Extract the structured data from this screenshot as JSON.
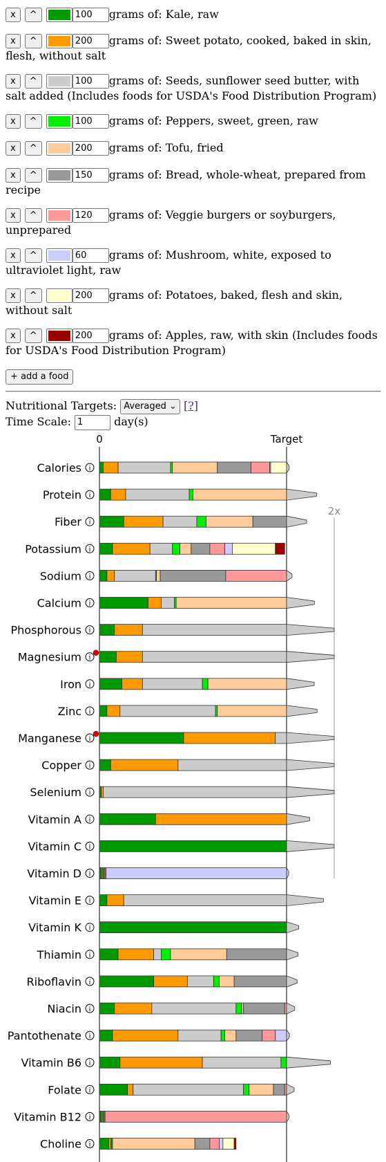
{
  "remove_label": "x",
  "up_label": "^",
  "grams_of": "grams of:",
  "foods": [
    {
      "amount": "100",
      "name": "Kale, raw",
      "color": "#009900"
    },
    {
      "amount": "200",
      "name": "Sweet potato, cooked, baked in skin, flesh, without salt",
      "color": "#ff9900"
    },
    {
      "amount": "100",
      "name": "Seeds, sunflower seed butter, with salt added (Includes foods for USDA's Food Distribution Program)",
      "color": "#cccccc"
    },
    {
      "amount": "100",
      "name": "Peppers, sweet, green, raw",
      "color": "#00ee00"
    },
    {
      "amount": "200",
      "name": "Tofu, fried",
      "color": "#ffcc99"
    },
    {
      "amount": "150",
      "name": "Bread, whole-wheat, prepared from recipe",
      "color": "#999999"
    },
    {
      "amount": "120",
      "name": "Veggie burgers or soyburgers, unprepared",
      "color": "#ff9999"
    },
    {
      "amount": "60",
      "name": "Mushroom, white, exposed to ultraviolet light, raw",
      "color": "#ccccff"
    },
    {
      "amount": "200",
      "name": "Potatoes, baked, flesh and skin, without salt",
      "color": "#ffffcc"
    },
    {
      "amount": "200",
      "name": "Apples, raw, with skin (Includes foods for USDA's Food Distribution Program)",
      "color": "#990000"
    }
  ],
  "add_food_label": "+ add a food",
  "targets_label": "Nutritional Targets:",
  "targets_select": "Averaged",
  "help_link": "[?]",
  "time_scale_label": "Time Scale:",
  "time_scale_value": "1",
  "time_scale_unit": "day(s)",
  "chart_data": {
    "type": "bar",
    "stacked": true,
    "axis_labels": {
      "zero": "0",
      "target": "Target",
      "double": "2x"
    },
    "food_colors": [
      "#009900",
      "#ff9900",
      "#cccccc",
      "#00ee00",
      "#ffcc99",
      "#999999",
      "#ff9999",
      "#ccccff",
      "#ffffcc",
      "#990000"
    ],
    "categories": [
      "Calories",
      "Protein",
      "Fiber",
      "Potassium",
      "Sodium",
      "Calcium",
      "Phosphorous",
      "Magnesium",
      "Iron",
      "Zinc",
      "Manganese",
      "Copper",
      "Selenium",
      "Vitamin A",
      "Vitamin C",
      "Vitamin D",
      "Vitamin E",
      "Vitamin K",
      "Thiamin",
      "Riboflavin",
      "Niacin",
      "Pantothenate",
      "Vitamin B6",
      "Folate",
      "Vitamin B12",
      "Choline"
    ],
    "flagged": [
      "Magnesium",
      "Manganese"
    ],
    "segments": [
      [
        0.02,
        0.08,
        0.28,
        0.01,
        0.24,
        0.18,
        0.1,
        0.005,
        0.1,
        0.04
      ],
      [
        0.06,
        0.08,
        0.34,
        0.02,
        0.6,
        0.3,
        0.12,
        0.02,
        0.08,
        0.01
      ],
      [
        0.13,
        0.21,
        0.18,
        0.05,
        0.25,
        0.28,
        0.15,
        0.02,
        0.1,
        0.05
      ],
      [
        0.07,
        0.2,
        0.12,
        0.04,
        0.06,
        0.1,
        0.08,
        0.04,
        0.23,
        0.05
      ],
      [
        0.04,
        0.04,
        0.22,
        0.005,
        0.02,
        0.35,
        0.42,
        0.005,
        0.01,
        0.005
      ],
      [
        0.26,
        0.07,
        0.07,
        0.01,
        1.0,
        0.06,
        0.08,
        0.005,
        0.02,
        0.01
      ],
      [
        0.08,
        0.15,
        1.0,
        0.03,
        0.4,
        0.25,
        0.1,
        0.02,
        0.05,
        0.01
      ],
      [
        0.09,
        0.14,
        1.0,
        0.03,
        0.35,
        0.25,
        0.08,
        0.02,
        0.05,
        0.01
      ],
      [
        0.12,
        0.11,
        0.32,
        0.03,
        0.6,
        0.2,
        0.12,
        0.03,
        0.04,
        0.01
      ],
      [
        0.04,
        0.07,
        0.51,
        0.01,
        0.5,
        0.3,
        0.15,
        0.02,
        0.03,
        0.01
      ],
      [
        0.45,
        0.49,
        0.07,
        0.03,
        0.9,
        0.5,
        0.1,
        0.01,
        0.05,
        0.02
      ],
      [
        0.06,
        0.36,
        1.0,
        0.02,
        0.6,
        0.3,
        0.1,
        0.02,
        0.05,
        0.02
      ],
      [
        0.01,
        0.01,
        1.0,
        0.005,
        0.4,
        0.5,
        0.2,
        0.01,
        0.01,
        0.005
      ],
      [
        0.3,
        1.0,
        0.01,
        0.03,
        0.02,
        0.005,
        0.1,
        0.005,
        0.01,
        0.005
      ],
      [
        1.0,
        0.3,
        0.01,
        0.8,
        0.01,
        0.005,
        0.01,
        0.005,
        0.1,
        0.03
      ],
      [
        0.005,
        0.005,
        0.005,
        0.005,
        0.005,
        0.005,
        0.005,
        1.0,
        0.005,
        0.005
      ],
      [
        0.04,
        0.09,
        1.0,
        0.02,
        0.3,
        0.2,
        0.1,
        0.005,
        0.01,
        0.01
      ],
      [
        1.0,
        0.02,
        0.01,
        0.1,
        0.05,
        0.03,
        0.01,
        0.005,
        0.01,
        0.02
      ],
      [
        0.1,
        0.19,
        0.04,
        0.05,
        0.3,
        0.33,
        0.15,
        0.02,
        0.05,
        0.01
      ],
      [
        0.29,
        0.18,
        0.14,
        0.03,
        0.08,
        0.28,
        0.15,
        0.03,
        0.03,
        0.01
      ],
      [
        0.08,
        0.2,
        0.45,
        0.03,
        0.01,
        0.22,
        0.1,
        0.02,
        0.05,
        0.01
      ],
      [
        0.07,
        0.35,
        0.23,
        0.02,
        0.06,
        0.14,
        0.07,
        0.06,
        0.05,
        0.01
      ],
      [
        0.11,
        0.44,
        0.42,
        0.03,
        0.3,
        0.2,
        0.15,
        0.05,
        0.2,
        0.02
      ],
      [
        0.15,
        0.03,
        0.59,
        0.03,
        0.13,
        0.06,
        0.1,
        0.01,
        0.05,
        0.01
      ],
      [
        0.005,
        0.005,
        0.005,
        0.005,
        0.005,
        0.005,
        1.0,
        0.01,
        0.005,
        0.005
      ],
      [
        0.05,
        0.01,
        0.005,
        0.005,
        0.44,
        0.08,
        0.05,
        0.02,
        0.06,
        0.01
      ]
    ],
    "scale": {
      "zero": 0,
      "target": 1,
      "max_shown": 2
    }
  }
}
